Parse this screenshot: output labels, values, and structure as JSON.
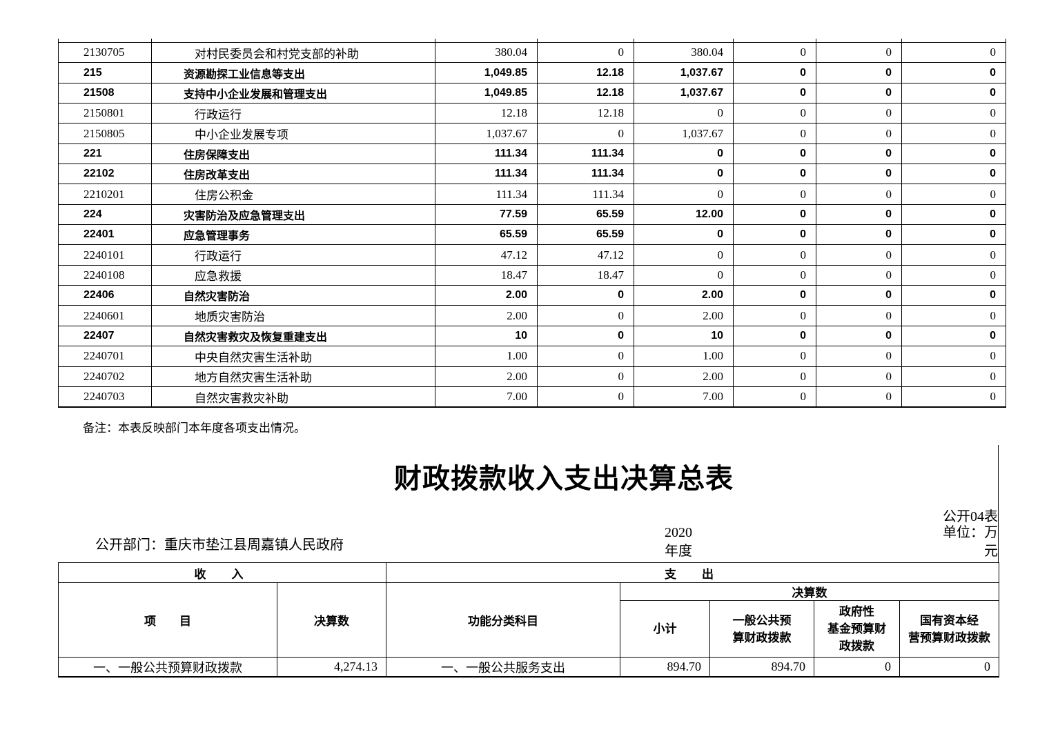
{
  "page": {
    "remark": "备注：本表反映部门本年度各项支出情况。",
    "title": "财政拨款收入支出决算总表",
    "table_no": "公开04表",
    "unit_label": "单位：万元",
    "department_label": "公开部门：重庆市垫江县周嘉镇人民政府",
    "year_label": "2020年度"
  },
  "expenditure_table": {
    "rows": [
      {
        "code": "2130705",
        "name": "对村民委员会和村党支部的补助",
        "bold": false,
        "values": [
          "380.04",
          "0",
          "380.04",
          "0",
          "0",
          "0"
        ]
      },
      {
        "code": "215",
        "name": "资源勘探工业信息等支出",
        "bold": true,
        "values": [
          "1,049.85",
          "12.18",
          "1,037.67",
          "0",
          "0",
          "0"
        ]
      },
      {
        "code": "21508",
        "name": "支持中小企业发展和管理支出",
        "bold": true,
        "values": [
          "1,049.85",
          "12.18",
          "1,037.67",
          "0",
          "0",
          "0"
        ]
      },
      {
        "code": "2150801",
        "name": "行政运行",
        "bold": false,
        "values": [
          "12.18",
          "12.18",
          "0",
          "0",
          "0",
          "0"
        ]
      },
      {
        "code": "2150805",
        "name": "中小企业发展专项",
        "bold": false,
        "values": [
          "1,037.67",
          "0",
          "1,037.67",
          "0",
          "0",
          "0"
        ]
      },
      {
        "code": "221",
        "name": "住房保障支出",
        "bold": true,
        "values": [
          "111.34",
          "111.34",
          "0",
          "0",
          "0",
          "0"
        ]
      },
      {
        "code": "22102",
        "name": "住房改革支出",
        "bold": true,
        "values": [
          "111.34",
          "111.34",
          "0",
          "0",
          "0",
          "0"
        ]
      },
      {
        "code": "2210201",
        "name": "住房公积金",
        "bold": false,
        "values": [
          "111.34",
          "111.34",
          "0",
          "0",
          "0",
          "0"
        ]
      },
      {
        "code": "224",
        "name": "灾害防治及应急管理支出",
        "bold": true,
        "values": [
          "77.59",
          "65.59",
          "12.00",
          "0",
          "0",
          "0"
        ]
      },
      {
        "code": "22401",
        "name": "应急管理事务",
        "bold": true,
        "values": [
          "65.59",
          "65.59",
          "0",
          "0",
          "0",
          "0"
        ]
      },
      {
        "code": "2240101",
        "name": "行政运行",
        "bold": false,
        "values": [
          "47.12",
          "47.12",
          "0",
          "0",
          "0",
          "0"
        ]
      },
      {
        "code": "2240108",
        "name": "应急救援",
        "bold": false,
        "values": [
          "18.47",
          "18.47",
          "0",
          "0",
          "0",
          "0"
        ]
      },
      {
        "code": "22406",
        "name": "自然灾害防治",
        "bold": true,
        "values": [
          "2.00",
          "0",
          "2.00",
          "0",
          "0",
          "0"
        ]
      },
      {
        "code": "2240601",
        "name": "地质灾害防治",
        "bold": false,
        "values": [
          "2.00",
          "0",
          "2.00",
          "0",
          "0",
          "0"
        ]
      },
      {
        "code": "22407",
        "name": "自然灾害救灾及恢复重建支出",
        "bold": true,
        "values": [
          "10",
          "0",
          "10",
          "0",
          "0",
          "0"
        ]
      },
      {
        "code": "2240701",
        "name": "中央自然灾害生活补助",
        "bold": false,
        "values": [
          "1.00",
          "0",
          "1.00",
          "0",
          "0",
          "0"
        ]
      },
      {
        "code": "2240702",
        "name": "地方自然灾害生活补助",
        "bold": false,
        "values": [
          "2.00",
          "0",
          "2.00",
          "0",
          "0",
          "0"
        ]
      },
      {
        "code": "2240703",
        "name": "自然灾害救灾补助",
        "bold": false,
        "values": [
          "7.00",
          "0",
          "7.00",
          "0",
          "0",
          "0"
        ]
      }
    ]
  },
  "summary_table": {
    "headers": {
      "income": "收　入",
      "expense": "支　出",
      "item": "项　　目",
      "final_amount": "决算数",
      "func_subject": "功能分类科目",
      "final_amount_group": "决算数",
      "subtotal": "小计",
      "general_budget": "一般公共预\n算财政拨款",
      "gov_fund": "政府性\n基金预算财\n政拨款",
      "state_capital": "国有资本经\n营预算财政拨款"
    },
    "rows": [
      {
        "income_item": "一、一般公共预算财政拨款",
        "income_amount": "4,274.13",
        "expense_item": "一、一般公共服务支出",
        "subtotal": "894.70",
        "general_budget": "894.70",
        "gov_fund": "0",
        "state_capital": "0"
      }
    ]
  }
}
